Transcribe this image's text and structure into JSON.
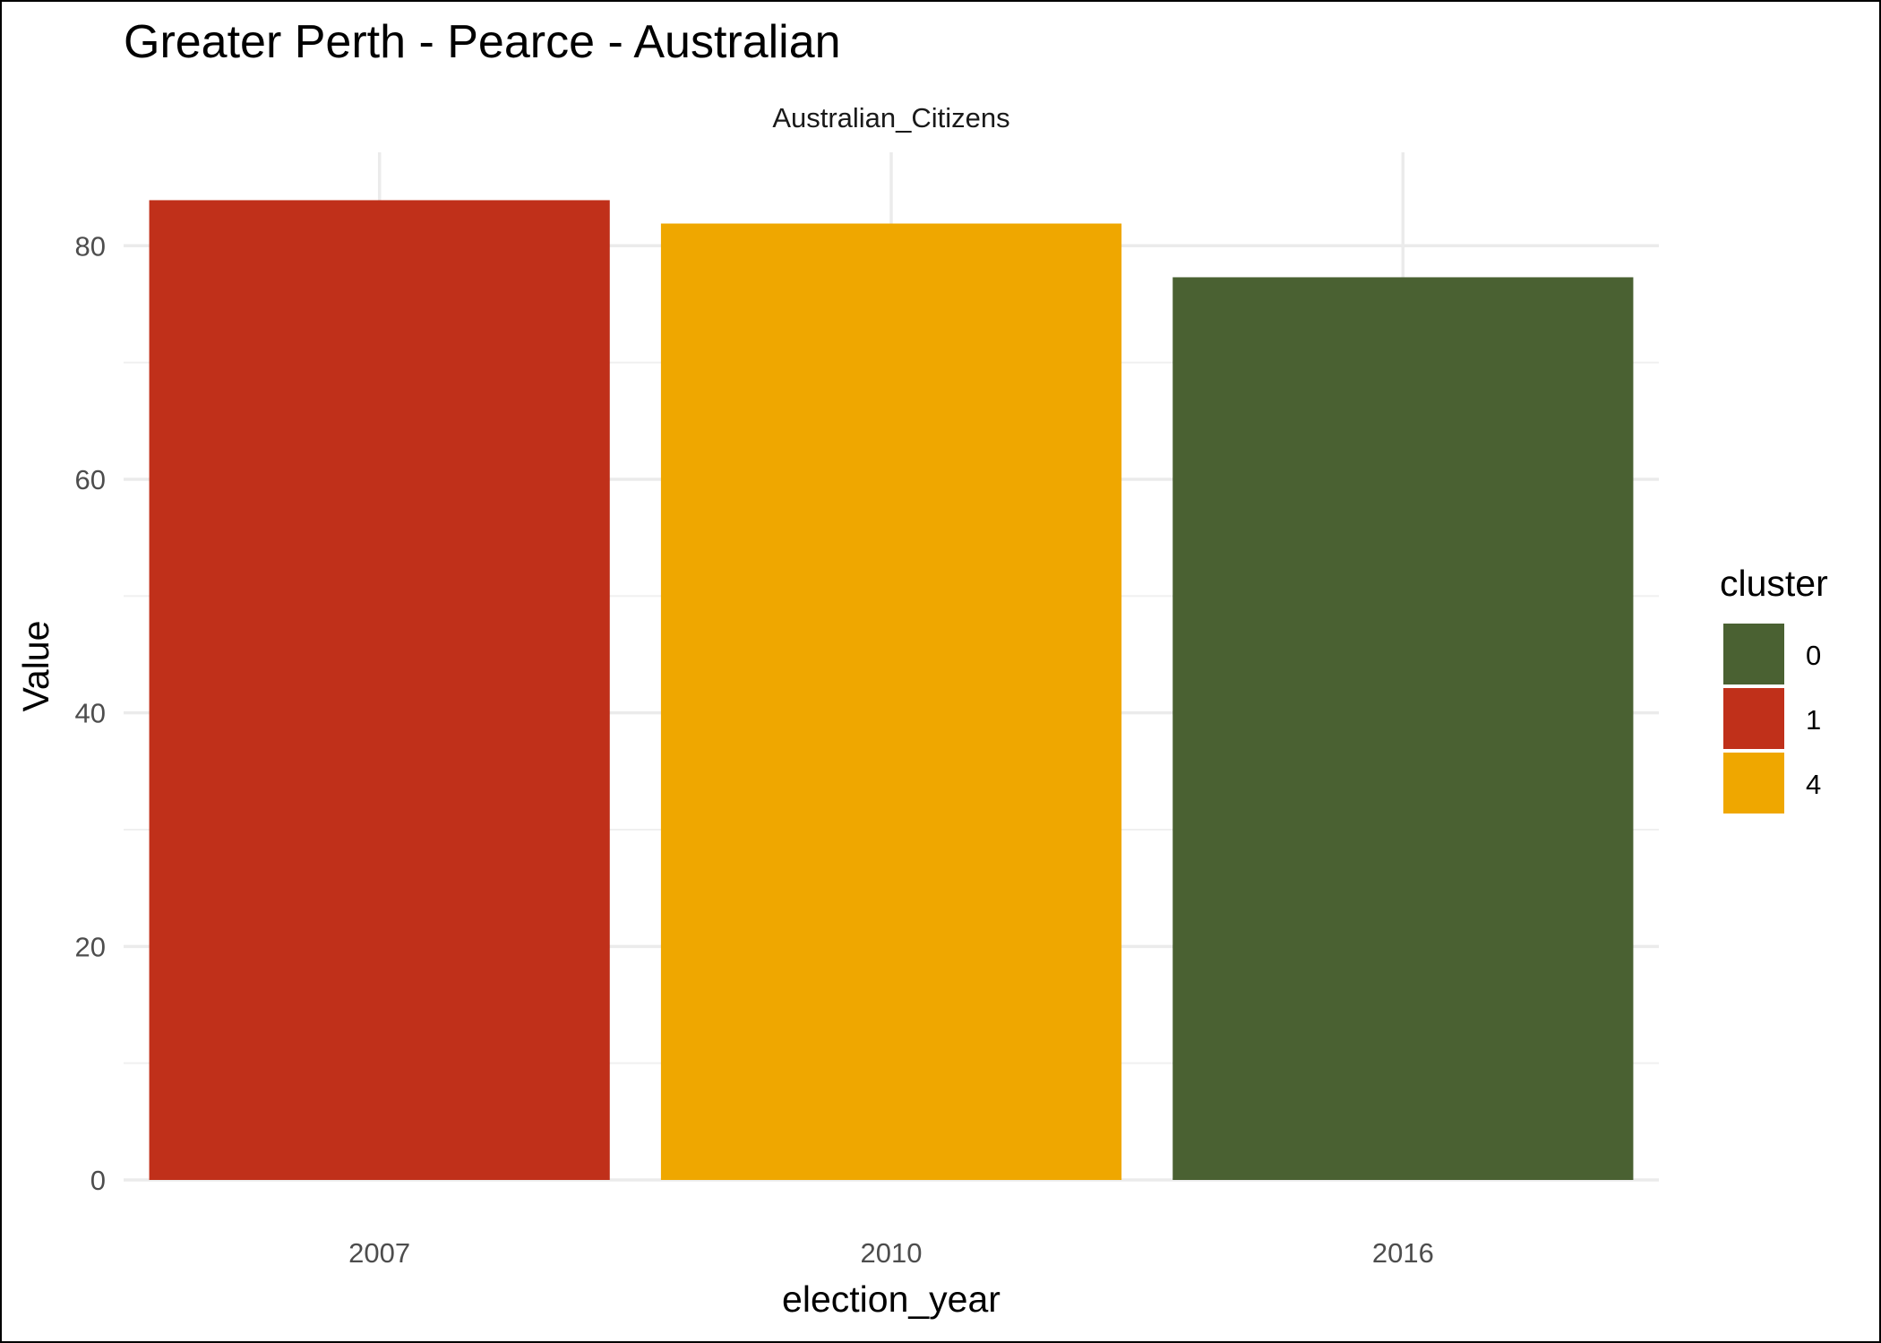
{
  "chart_data": {
    "type": "bar",
    "title": "Greater Perth - Pearce - Australian",
    "facet_label": "Australian_Citizens",
    "xlabel": "election_year",
    "ylabel": "Value",
    "categories": [
      "2007",
      "2010",
      "2016"
    ],
    "values": [
      83.9,
      81.9,
      77.3
    ],
    "bar_clusters": [
      "1",
      "4",
      "0"
    ],
    "ylim": [
      0,
      88
    ],
    "y_ticks": [
      0,
      20,
      40,
      60,
      80
    ],
    "grid": true,
    "legend": {
      "title": "cluster",
      "placement": "right",
      "entries": [
        {
          "label": "0",
          "color": "#4a6132"
        },
        {
          "label": "1",
          "color": "#c0301a"
        },
        {
          "label": "4",
          "color": "#efa700"
        }
      ]
    }
  }
}
